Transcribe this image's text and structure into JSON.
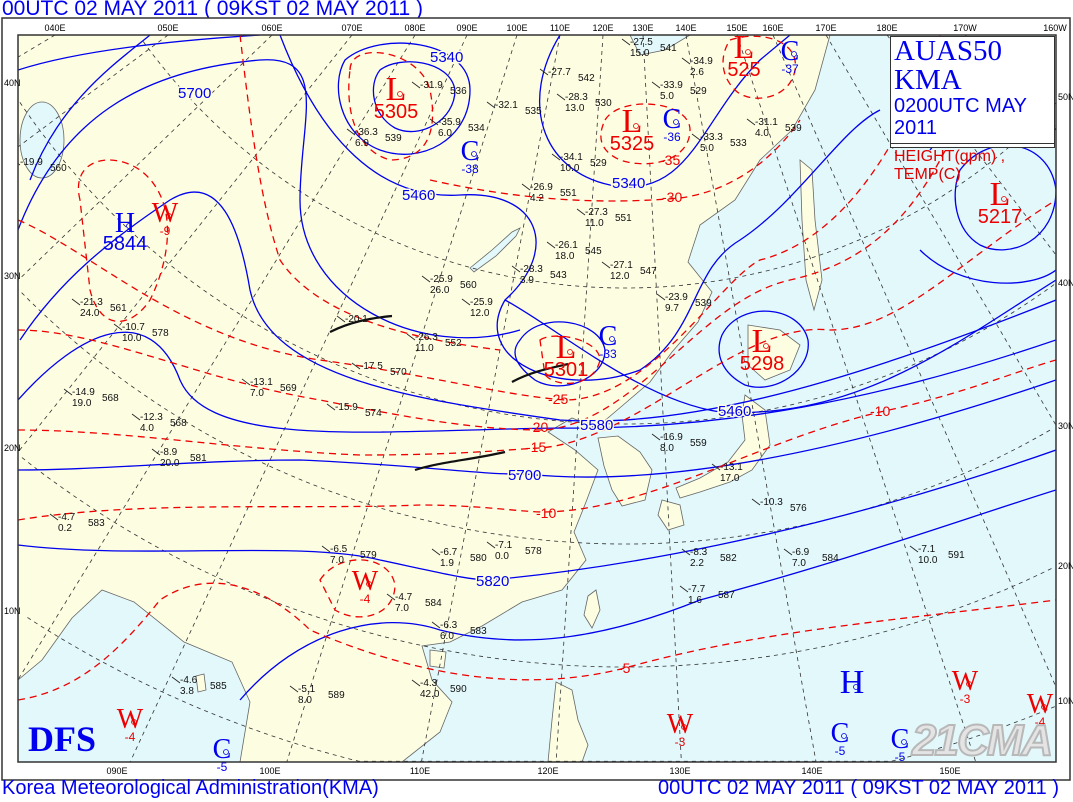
{
  "header": {
    "title": "00UTC 02 MAY 2011 ( 09KST 02 MAY 2011 )"
  },
  "footer": {
    "organization": "Korea Meteorological Administration(KMA)",
    "time": "00UTC 02 MAY 2011 ( 09KST 02 MAY 2011 )"
  },
  "legend": {
    "product": "AUAS50  KMA",
    "valid": "0200UTC MAY 2011",
    "fields": "HEIGHT(gpm) , TEMP(C)"
  },
  "logo": "DFS",
  "watermark": "21CMA",
  "colors": {
    "land": "#fdfde2",
    "sea": "#e2f8fb",
    "height_contour": "#0000ee",
    "temp_contour": "#ee0000",
    "grid": "#333333"
  },
  "frame": {
    "top_lon_labels": [
      "040E",
      "050E",
      "060E",
      "070E",
      "080E",
      "090E",
      "100E",
      "110E",
      "120E",
      "130E",
      "140E",
      "150E",
      "160E",
      "170E",
      "180E",
      "170W",
      "160W"
    ],
    "bottom_lon_labels": [
      "090E",
      "100E",
      "110E",
      "120E",
      "130E",
      "140E",
      "150E"
    ],
    "left_lat_labels": [
      "40N",
      "30N",
      "20N",
      "10N"
    ],
    "right_lat_labels": [
      "50N",
      "40N",
      "30N",
      "20N",
      "10N"
    ]
  },
  "systems": [
    {
      "letter": "L",
      "kind": "low",
      "color": "red",
      "value": "5305"
    },
    {
      "letter": "C",
      "kind": "cold",
      "color": "blue",
      "value": "-38"
    },
    {
      "letter": "L",
      "kind": "low",
      "color": "red",
      "value": "5325"
    },
    {
      "letter": "C",
      "kind": "cold",
      "color": "blue",
      "value": "-36"
    },
    {
      "letter": "L",
      "kind": "low",
      "color": "red",
      "value": "525"
    },
    {
      "letter": "C",
      "kind": "cold",
      "color": "blue",
      "value": "-37"
    },
    {
      "letter": "L",
      "kind": "low",
      "color": "red",
      "value": "5217"
    },
    {
      "letter": "L",
      "kind": "low",
      "color": "red",
      "value": "5298"
    },
    {
      "letter": "L",
      "kind": "low",
      "color": "red",
      "value": "5301"
    },
    {
      "letter": "C",
      "kind": "cold",
      "color": "blue",
      "value": "-33"
    },
    {
      "letter": "H",
      "kind": "high",
      "color": "blue",
      "value": "5844"
    },
    {
      "letter": "W",
      "kind": "warm",
      "color": "red",
      "value": "-9"
    },
    {
      "letter": "W",
      "kind": "warm",
      "color": "red",
      "value": "-4"
    },
    {
      "letter": "W",
      "kind": "warm",
      "color": "red",
      "value": "-4"
    },
    {
      "letter": "W",
      "kind": "warm",
      "color": "red",
      "value": "-3"
    },
    {
      "letter": "W",
      "kind": "warm",
      "color": "red",
      "value": "-3"
    },
    {
      "letter": "W",
      "kind": "warm",
      "color": "red",
      "value": "-4"
    },
    {
      "letter": "H",
      "kind": "high",
      "color": "blue",
      "value": ""
    },
    {
      "letter": "C",
      "kind": "cold",
      "color": "blue",
      "value": "-5"
    },
    {
      "letter": "C",
      "kind": "cold",
      "color": "blue",
      "value": "-5"
    },
    {
      "letter": "C",
      "kind": "cold",
      "color": "blue",
      "value": "-5"
    }
  ],
  "height_labels": [
    "5700",
    "5340",
    "5460",
    "5340",
    "5460",
    "5580",
    "5700",
    "5820"
  ],
  "temp_labels": [
    "-35",
    "-30",
    "-25",
    "-20",
    "-15",
    "-10",
    "-10",
    "-5"
  ],
  "stations": [
    {
      "t": "-27.5",
      "d": "15.0",
      "h": "541"
    },
    {
      "t": "-33.9",
      "d": "5.0",
      "h": "529"
    },
    {
      "t": "-28.3",
      "d": "13.0",
      "h": "530"
    },
    {
      "t": "-34.1",
      "d": "10.0",
      "h": "529"
    },
    {
      "t": "-33.3",
      "d": "5.0",
      "h": "533"
    },
    {
      "t": "-31.1",
      "d": "4.0",
      "h": "539"
    },
    {
      "t": "-34.9",
      "d": "2.6",
      "h": ""
    },
    {
      "t": "-31.9",
      "d": "",
      "h": "536"
    },
    {
      "t": "-35.9",
      "d": "6.0",
      "h": "534"
    },
    {
      "t": "-36.3",
      "d": "6.9",
      "h": "539"
    },
    {
      "t": "-32.1",
      "d": "",
      "h": "535"
    },
    {
      "t": "-27.7",
      "d": "",
      "h": "542"
    },
    {
      "t": "-26.9",
      "d": "4.2",
      "h": "551"
    },
    {
      "t": "-27.3",
      "d": "11.0",
      "h": "551"
    },
    {
      "t": "-27.1",
      "d": "12.0",
      "h": "547"
    },
    {
      "t": "-28.3",
      "d": "3.9",
      "h": "543"
    },
    {
      "t": "-25.9",
      "d": "26.0",
      "h": "560"
    },
    {
      "t": "-26.1",
      "d": "18.0",
      "h": "545"
    },
    {
      "t": "-23.9",
      "d": "9.7",
      "h": "539"
    },
    {
      "t": "-21.3",
      "d": "24.0",
      "h": "561"
    },
    {
      "t": "-26.3",
      "d": "11.0",
      "h": "552"
    },
    {
      "t": "-25.9",
      "d": "12.0",
      "h": ""
    },
    {
      "t": "-16.9",
      "d": "8.0",
      "h": "559"
    },
    {
      "t": "-13.1",
      "d": "17.0",
      "h": ""
    },
    {
      "t": "-12.3",
      "d": "4.0",
      "h": "568"
    },
    {
      "t": "-10.3",
      "d": "",
      "h": "576"
    },
    {
      "t": "-20.1",
      "d": "",
      "h": ""
    },
    {
      "t": "-17.5",
      "d": "",
      "h": "570"
    },
    {
      "t": "-15.9",
      "d": "",
      "h": "574"
    },
    {
      "t": "-10.7",
      "d": "10.0",
      "h": "578"
    },
    {
      "t": "-8.9",
      "d": "20.0",
      "h": "581"
    },
    {
      "t": "-6.5",
      "d": "7.0",
      "h": "579"
    },
    {
      "t": "-6.7",
      "d": "1.9",
      "h": "580"
    },
    {
      "t": "-7.1",
      "d": "0.0",
      "h": "578"
    },
    {
      "t": "-4.7",
      "d": "7.0",
      "h": "584"
    },
    {
      "t": "-6.3",
      "d": "6.0",
      "h": "583"
    },
    {
      "t": "-4.3",
      "d": "42.0",
      "h": "590"
    },
    {
      "t": "-5.1",
      "d": "8.0",
      "h": "589"
    },
    {
      "t": "-4.6",
      "d": "3.8",
      "h": "585"
    },
    {
      "t": "-8.3",
      "d": "2.2",
      "h": "582"
    },
    {
      "t": "-7.7",
      "d": "1.6",
      "h": "587"
    },
    {
      "t": "-6.9",
      "d": "7.0",
      "h": "584"
    },
    {
      "t": "-7.1",
      "d": "10.0",
      "h": "591"
    },
    {
      "t": "-4.7",
      "d": "0.2",
      "h": "583"
    },
    {
      "t": "-14.9",
      "d": "19.0",
      "h": "568"
    },
    {
      "t": "-19.9",
      "d": "",
      "h": "560"
    },
    {
      "t": "-13.1",
      "d": "7.0",
      "h": "569"
    }
  ]
}
